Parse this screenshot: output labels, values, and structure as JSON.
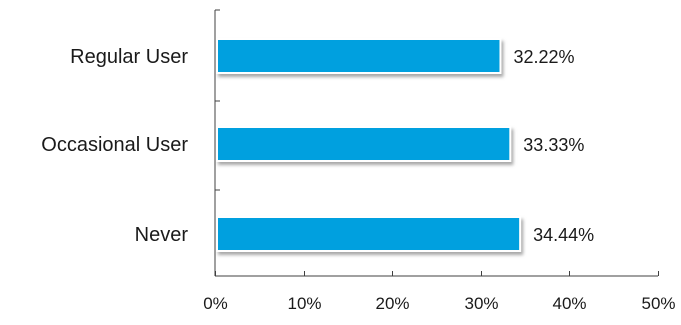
{
  "chart_data": {
    "type": "bar",
    "orientation": "horizontal",
    "categories": [
      "Regular User",
      "Occasional User",
      "Never"
    ],
    "values": [
      32.22,
      33.33,
      34.44
    ],
    "value_labels": [
      "32.22%",
      "33.33%",
      "34.44%"
    ],
    "xlim": [
      0,
      50
    ],
    "x_ticks": [
      0,
      10,
      20,
      30,
      40,
      50
    ],
    "x_tick_labels": [
      "0%",
      "10%",
      "20%",
      "30%",
      "40%",
      "50%"
    ],
    "title": "",
    "xlabel": "",
    "ylabel": "",
    "grid": false,
    "legend": "none",
    "colors": {
      "bar": "#00A0DF",
      "bar_edge": "#ffffff",
      "bar_shadow": "#9a9a9a",
      "axis": "#404040",
      "text": "#1a1a1a"
    }
  }
}
